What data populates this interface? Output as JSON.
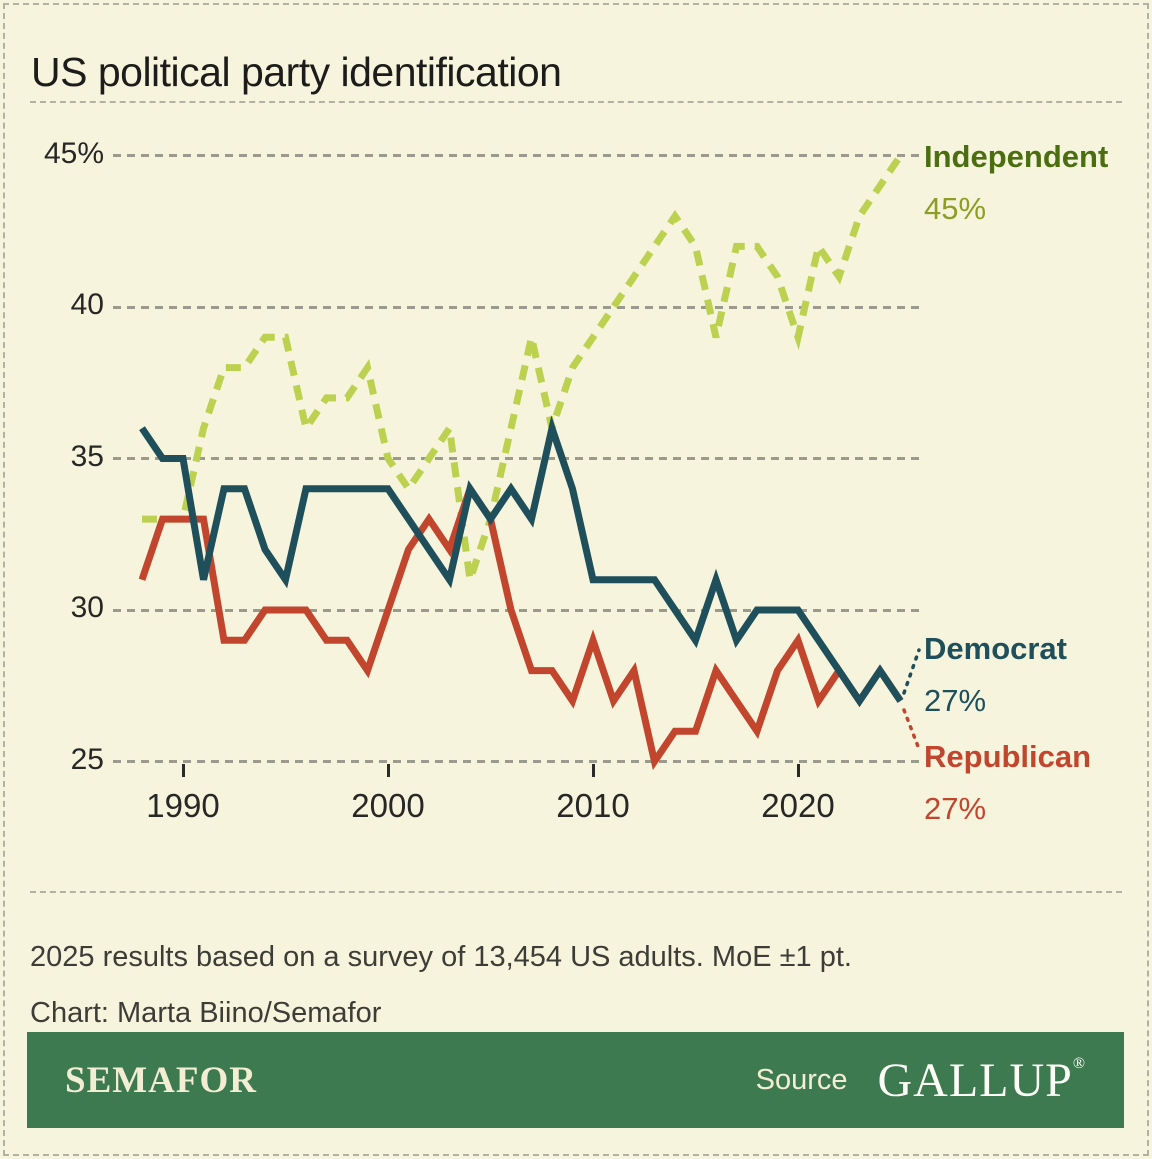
{
  "title": "US political party identification",
  "chart_data": {
    "type": "line",
    "x": [
      1988,
      1989,
      1990,
      1991,
      1992,
      1993,
      1994,
      1995,
      1996,
      1997,
      1998,
      1999,
      2000,
      2001,
      2002,
      2003,
      2004,
      2005,
      2006,
      2007,
      2008,
      2009,
      2010,
      2011,
      2012,
      2013,
      2014,
      2015,
      2016,
      2017,
      2018,
      2019,
      2020,
      2021,
      2022,
      2023,
      2024,
      2025
    ],
    "series": [
      {
        "name": "Independent",
        "color": "#bcd14f",
        "dashed": true,
        "values": [
          33,
          33,
          33,
          36,
          38,
          38,
          39,
          39,
          36,
          37,
          37,
          38,
          35,
          34,
          35,
          36,
          31,
          33,
          36,
          39,
          36,
          38,
          39,
          40,
          41,
          42,
          43,
          42,
          39,
          42,
          42,
          41,
          39,
          42,
          41,
          43,
          44,
          45
        ]
      },
      {
        "name": "Republican",
        "color": "#c2452e",
        "dashed": false,
        "values": [
          31,
          33,
          33,
          33,
          29,
          29,
          30,
          30,
          30,
          29,
          29,
          28,
          30,
          32,
          33,
          32,
          34,
          33,
          30,
          28,
          28,
          27,
          29,
          27,
          28,
          25,
          26,
          26,
          28,
          27,
          26,
          28,
          29,
          27,
          28,
          27,
          28,
          27
        ]
      },
      {
        "name": "Democrat",
        "color": "#1f4f5b",
        "dashed": false,
        "values": [
          36,
          35,
          35,
          31,
          34,
          34,
          32,
          31,
          34,
          34,
          34,
          34,
          34,
          33,
          32,
          31,
          34,
          33,
          34,
          33,
          36,
          34,
          31,
          31,
          31,
          31,
          30,
          29,
          31,
          29,
          30,
          30,
          30,
          29,
          28,
          27,
          28,
          27
        ]
      }
    ],
    "ylabel": "",
    "xlabel": "",
    "ylim": [
      25,
      45
    ],
    "yticks": [
      {
        "value": 45,
        "label": "45%"
      },
      {
        "value": 40,
        "label": "40"
      },
      {
        "value": 35,
        "label": "35"
      },
      {
        "value": 30,
        "label": "30"
      },
      {
        "value": 25,
        "label": "25"
      }
    ],
    "xticks": [
      1990,
      2000,
      2010,
      2020
    ],
    "grid": "horizontal-dashed",
    "legend_position": "right-end-labels"
  },
  "end_labels": {
    "independent": {
      "name": "Independent",
      "value": "45%",
      "name_color": "#4b6e10",
      "value_color": "#8c9e25"
    },
    "democrat": {
      "name": "Democrat",
      "value": "27%",
      "color": "#1f4f5b"
    },
    "republican": {
      "name": "Republican",
      "value": "27%",
      "color": "#c2452e"
    }
  },
  "notes": {
    "methodology": "2025 results based on a survey of 13,454 US adults. MoE ±1 pt.",
    "credit": "Chart: Marta Biino/Semafor"
  },
  "footer": {
    "brand": "SEMAFOR",
    "source_label": "Source",
    "source_name": "GALLUP",
    "reg_mark": "®",
    "banner_color": "#3e7a50"
  },
  "background_color": "#f7f4dd"
}
